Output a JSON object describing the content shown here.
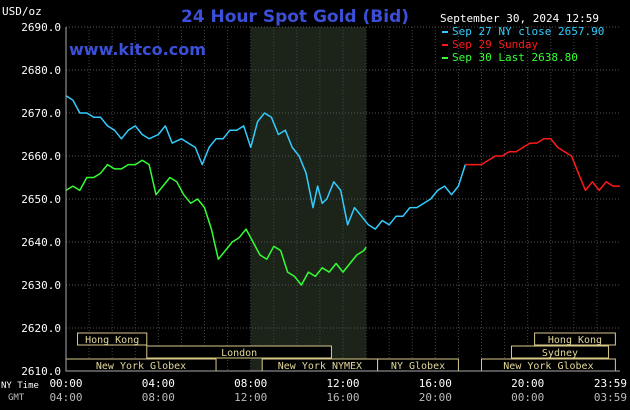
{
  "chart_data": {
    "type": "line",
    "title": "24 Hour Spot Gold (Bid)",
    "ylabel": "USD/oz",
    "ylim": [
      2610,
      2690
    ],
    "yticks": [
      "2690.0",
      "2680.0",
      "2670.0",
      "2660.0",
      "2650.0",
      "2640.0",
      "2630.0",
      "2620.0",
      "2610.0"
    ],
    "xlim": [
      0,
      24
    ],
    "x_ticks_ny": [
      "00:00",
      "04:00",
      "08:00",
      "12:00",
      "16:00",
      "20:00",
      "23:59"
    ],
    "x_ticks_gmt": [
      "04:00",
      "08:00",
      "12:00",
      "16:00",
      "20:00",
      "00:00",
      "03:59"
    ],
    "x_axis_label_ny": "NY Time",
    "x_axis_label_gmt": "GMT",
    "website": "www.kitco.com",
    "date_stamp": "September 30, 2024 12:59",
    "grid": true,
    "shaded_session": [
      8,
      13
    ],
    "legend_position": "top-right",
    "legend": [
      {
        "label": "Sep 27 NY close 2657.90",
        "color": "#33ccff"
      },
      {
        "label": "Sep 29 Sunday",
        "color": "#ff1a1a"
      },
      {
        "label": "Sep 30 Last 2638.80",
        "color": "#33ff33"
      }
    ],
    "series": [
      {
        "name": "Sep 27 NY close 2657.90",
        "color": "#33ccff",
        "x": [
          0,
          0.3,
          0.6,
          0.9,
          1.2,
          1.5,
          1.8,
          2.1,
          2.4,
          2.7,
          3.0,
          3.3,
          3.6,
          4.0,
          4.3,
          4.6,
          5.0,
          5.3,
          5.6,
          5.9,
          6.2,
          6.5,
          6.8,
          7.1,
          7.4,
          7.7,
          8.0,
          8.3,
          8.6,
          8.9,
          9.2,
          9.5,
          9.8,
          10.1,
          10.4,
          10.7,
          10.9,
          11.1,
          11.3,
          11.6,
          11.9,
          12.2,
          12.5,
          12.8,
          13.1,
          13.4,
          13.7,
          14.0,
          14.3,
          14.6,
          14.9,
          15.2,
          15.5,
          15.8,
          16.1,
          16.4,
          16.7,
          17.0,
          17.3
        ],
        "values": [
          2674,
          2673,
          2670,
          2670,
          2669,
          2669,
          2667,
          2666,
          2664,
          2666,
          2667,
          2665,
          2664,
          2665,
          2667,
          2663,
          2664,
          2663,
          2662,
          2658,
          2662,
          2664,
          2664,
          2666,
          2666,
          2667,
          2662,
          2668,
          2670,
          2669,
          2665,
          2666,
          2662,
          2660,
          2656,
          2648,
          2653,
          2649,
          2650,
          2654,
          2652,
          2644,
          2648,
          2646,
          2644,
          2643,
          2645,
          2644,
          2646,
          2646,
          2648,
          2648,
          2649,
          2650,
          2652,
          2653,
          2651,
          2653,
          2658
        ]
      },
      {
        "name": "Sep 29 Sunday",
        "color": "#ff1a1a",
        "x": [
          17.3,
          18.0,
          18.3,
          18.6,
          18.9,
          19.2,
          19.5,
          19.8,
          20.1,
          20.4,
          20.7,
          21.0,
          21.3,
          21.6,
          21.9,
          22.2,
          22.5,
          22.8,
          23.1,
          23.4,
          23.7,
          24.0
        ],
        "values": [
          2658,
          2658,
          2659,
          2660,
          2660,
          2661,
          2661,
          2662,
          2663,
          2663,
          2664,
          2664,
          2662,
          2661,
          2660,
          2656,
          2652,
          2654,
          2652,
          2654,
          2653,
          2653
        ]
      },
      {
        "name": "Sep 30 Last 2638.80",
        "color": "#33ff33",
        "x": [
          0,
          0.3,
          0.6,
          0.9,
          1.2,
          1.5,
          1.8,
          2.1,
          2.4,
          2.7,
          3.0,
          3.3,
          3.6,
          3.9,
          4.2,
          4.5,
          4.8,
          5.1,
          5.4,
          5.7,
          6.0,
          6.3,
          6.6,
          6.9,
          7.2,
          7.5,
          7.8,
          8.1,
          8.4,
          8.7,
          9.0,
          9.3,
          9.6,
          9.9,
          10.2,
          10.5,
          10.8,
          11.1,
          11.4,
          11.7,
          12.0,
          12.3,
          12.6,
          12.9,
          13.0
        ],
        "values": [
          2652,
          2653,
          2652,
          2655,
          2655,
          2656,
          2658,
          2657,
          2657,
          2658,
          2658,
          2659,
          2658,
          2651,
          2653,
          2655,
          2654,
          2651,
          2649,
          2650,
          2648,
          2643,
          2636,
          2638,
          2640,
          2641,
          2643,
          2640,
          2637,
          2636,
          2639,
          2638,
          2633,
          2632,
          2630,
          2633,
          2632,
          2634,
          2633,
          2635,
          2633,
          2635,
          2637,
          2638,
          2638.8
        ]
      }
    ],
    "sessions": [
      {
        "label": "Hong Kong",
        "start": 0.5,
        "end": 3.5,
        "row": 0
      },
      {
        "label": "London",
        "start": 3.5,
        "end": 11.5,
        "row": 1
      },
      {
        "label": "New York Globex",
        "start": 0,
        "end": 6.5,
        "row": 2
      },
      {
        "label": "New York NYMEX",
        "start": 8.5,
        "end": 13.5,
        "row": 2
      },
      {
        "label": "NY Globex",
        "start": 13.5,
        "end": 17,
        "row": 2
      },
      {
        "label": "Hong Kong",
        "start": 20.3,
        "end": 23.8,
        "row": 0
      },
      {
        "label": "Sydney",
        "start": 19.3,
        "end": 23.5,
        "row": 1
      },
      {
        "label": "New York Globex",
        "start": 18,
        "end": 23.8,
        "row": 2
      }
    ]
  }
}
